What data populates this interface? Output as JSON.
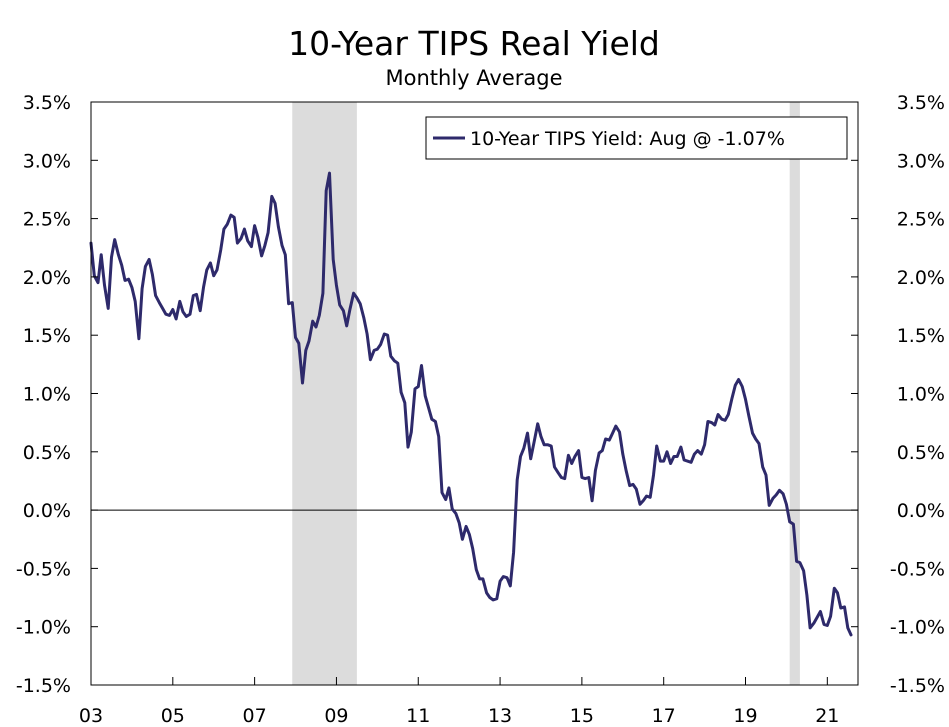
{
  "chart_data": {
    "type": "line",
    "title": "10-Year TIPS Real Yield",
    "subtitle": "Monthly Average",
    "xlabel": "",
    "ylabel": "",
    "x_range": [
      2003.0,
      2021.75
    ],
    "ylim": [
      -1.5,
      3.5
    ],
    "y_ticks": [
      3.5,
      3.0,
      2.5,
      2.0,
      1.5,
      1.0,
      0.5,
      0.0,
      -0.5,
      -1.0,
      -1.5
    ],
    "y_tick_labels": [
      "3.5%",
      "3.0%",
      "2.5%",
      "2.0%",
      "1.5%",
      "1.0%",
      "0.5%",
      "0.0%",
      "-0.5%",
      "-1.0%",
      "-1.5%"
    ],
    "x_ticks": [
      2003,
      2005,
      2007,
      2009,
      2011,
      2013,
      2015,
      2017,
      2019,
      2021
    ],
    "x_tick_labels": [
      "03",
      "05",
      "07",
      "09",
      "11",
      "13",
      "15",
      "17",
      "19",
      "21"
    ],
    "recessions": [
      [
        2007.92,
        2009.5
      ],
      [
        2020.08,
        2020.33
      ]
    ],
    "legend": "10-Year TIPS Yield: Aug @ -1.07%",
    "legend_position": "top-right",
    "series": [
      {
        "name": "10-Year TIPS Yield",
        "color": "#2e2a6b",
        "points": [
          [
            2003.0,
            2.29
          ],
          [
            2003.08,
            2.01
          ],
          [
            2003.17,
            1.95
          ],
          [
            2003.25,
            2.19
          ],
          [
            2003.33,
            1.93
          ],
          [
            2003.42,
            1.73
          ],
          [
            2003.5,
            2.17
          ],
          [
            2003.58,
            2.32
          ],
          [
            2003.67,
            2.19
          ],
          [
            2003.75,
            2.1
          ],
          [
            2003.83,
            1.97
          ],
          [
            2003.92,
            1.98
          ],
          [
            2004.0,
            1.91
          ],
          [
            2004.08,
            1.79
          ],
          [
            2004.17,
            1.47
          ],
          [
            2004.25,
            1.9
          ],
          [
            2004.33,
            2.09
          ],
          [
            2004.42,
            2.15
          ],
          [
            2004.5,
            2.02
          ],
          [
            2004.58,
            1.84
          ],
          [
            2004.67,
            1.78
          ],
          [
            2004.75,
            1.73
          ],
          [
            2004.83,
            1.68
          ],
          [
            2004.92,
            1.67
          ],
          [
            2005.0,
            1.72
          ],
          [
            2005.08,
            1.64
          ],
          [
            2005.17,
            1.79
          ],
          [
            2005.25,
            1.7
          ],
          [
            2005.33,
            1.66
          ],
          [
            2005.42,
            1.68
          ],
          [
            2005.5,
            1.84
          ],
          [
            2005.58,
            1.85
          ],
          [
            2005.67,
            1.71
          ],
          [
            2005.75,
            1.91
          ],
          [
            2005.83,
            2.06
          ],
          [
            2005.92,
            2.12
          ],
          [
            2006.0,
            2.01
          ],
          [
            2006.08,
            2.06
          ],
          [
            2006.17,
            2.23
          ],
          [
            2006.25,
            2.41
          ],
          [
            2006.33,
            2.45
          ],
          [
            2006.42,
            2.53
          ],
          [
            2006.5,
            2.51
          ],
          [
            2006.58,
            2.29
          ],
          [
            2006.67,
            2.33
          ],
          [
            2006.75,
            2.41
          ],
          [
            2006.83,
            2.31
          ],
          [
            2006.92,
            2.26
          ],
          [
            2007.0,
            2.44
          ],
          [
            2007.08,
            2.34
          ],
          [
            2007.17,
            2.18
          ],
          [
            2007.25,
            2.27
          ],
          [
            2007.33,
            2.38
          ],
          [
            2007.42,
            2.69
          ],
          [
            2007.5,
            2.63
          ],
          [
            2007.58,
            2.43
          ],
          [
            2007.67,
            2.27
          ],
          [
            2007.75,
            2.19
          ],
          [
            2007.83,
            1.77
          ],
          [
            2007.92,
            1.78
          ],
          [
            2008.0,
            1.48
          ],
          [
            2008.08,
            1.43
          ],
          [
            2008.17,
            1.09
          ],
          [
            2008.25,
            1.37
          ],
          [
            2008.33,
            1.45
          ],
          [
            2008.42,
            1.62
          ],
          [
            2008.5,
            1.57
          ],
          [
            2008.58,
            1.67
          ],
          [
            2008.67,
            1.86
          ],
          [
            2008.75,
            2.74
          ],
          [
            2008.83,
            2.89
          ],
          [
            2008.92,
            2.15
          ],
          [
            2009.0,
            1.93
          ],
          [
            2009.08,
            1.76
          ],
          [
            2009.17,
            1.71
          ],
          [
            2009.25,
            1.58
          ],
          [
            2009.33,
            1.72
          ],
          [
            2009.42,
            1.86
          ],
          [
            2009.5,
            1.82
          ],
          [
            2009.58,
            1.77
          ],
          [
            2009.67,
            1.65
          ],
          [
            2009.75,
            1.51
          ],
          [
            2009.83,
            1.29
          ],
          [
            2009.92,
            1.37
          ],
          [
            2010.0,
            1.38
          ],
          [
            2010.08,
            1.42
          ],
          [
            2010.17,
            1.51
          ],
          [
            2010.25,
            1.5
          ],
          [
            2010.33,
            1.32
          ],
          [
            2010.42,
            1.28
          ],
          [
            2010.5,
            1.26
          ],
          [
            2010.58,
            1.01
          ],
          [
            2010.67,
            0.92
          ],
          [
            2010.75,
            0.54
          ],
          [
            2010.83,
            0.67
          ],
          [
            2010.92,
            1.04
          ],
          [
            2011.0,
            1.06
          ],
          [
            2011.08,
            1.24
          ],
          [
            2011.17,
            0.98
          ],
          [
            2011.25,
            0.88
          ],
          [
            2011.33,
            0.78
          ],
          [
            2011.42,
            0.76
          ],
          [
            2011.5,
            0.63
          ],
          [
            2011.58,
            0.15
          ],
          [
            2011.67,
            0.09
          ],
          [
            2011.75,
            0.19
          ],
          [
            2011.83,
            0.01
          ],
          [
            2011.92,
            -0.03
          ],
          [
            2012.0,
            -0.11
          ],
          [
            2012.08,
            -0.25
          ],
          [
            2012.17,
            -0.14
          ],
          [
            2012.25,
            -0.21
          ],
          [
            2012.33,
            -0.33
          ],
          [
            2012.42,
            -0.51
          ],
          [
            2012.5,
            -0.59
          ],
          [
            2012.58,
            -0.59
          ],
          [
            2012.67,
            -0.71
          ],
          [
            2012.75,
            -0.75
          ],
          [
            2012.83,
            -0.77
          ],
          [
            2012.92,
            -0.76
          ],
          [
            2013.0,
            -0.61
          ],
          [
            2013.08,
            -0.57
          ],
          [
            2013.17,
            -0.58
          ],
          [
            2013.25,
            -0.65
          ],
          [
            2013.33,
            -0.36
          ],
          [
            2013.42,
            0.26
          ],
          [
            2013.5,
            0.46
          ],
          [
            2013.58,
            0.53
          ],
          [
            2013.67,
            0.66
          ],
          [
            2013.75,
            0.44
          ],
          [
            2013.83,
            0.58
          ],
          [
            2013.92,
            0.74
          ],
          [
            2014.0,
            0.63
          ],
          [
            2014.08,
            0.56
          ],
          [
            2014.17,
            0.56
          ],
          [
            2014.25,
            0.55
          ],
          [
            2014.33,
            0.37
          ],
          [
            2014.42,
            0.32
          ],
          [
            2014.5,
            0.28
          ],
          [
            2014.58,
            0.27
          ],
          [
            2014.67,
            0.47
          ],
          [
            2014.75,
            0.4
          ],
          [
            2014.83,
            0.46
          ],
          [
            2014.92,
            0.51
          ],
          [
            2015.0,
            0.28
          ],
          [
            2015.08,
            0.27
          ],
          [
            2015.17,
            0.28
          ],
          [
            2015.25,
            0.08
          ],
          [
            2015.33,
            0.34
          ],
          [
            2015.42,
            0.49
          ],
          [
            2015.5,
            0.51
          ],
          [
            2015.58,
            0.61
          ],
          [
            2015.67,
            0.6
          ],
          [
            2015.75,
            0.66
          ],
          [
            2015.83,
            0.72
          ],
          [
            2015.92,
            0.67
          ],
          [
            2016.0,
            0.48
          ],
          [
            2016.08,
            0.34
          ],
          [
            2016.17,
            0.21
          ],
          [
            2016.25,
            0.22
          ],
          [
            2016.33,
            0.18
          ],
          [
            2016.42,
            0.05
          ],
          [
            2016.5,
            0.08
          ],
          [
            2016.58,
            0.12
          ],
          [
            2016.67,
            0.11
          ],
          [
            2016.75,
            0.3
          ],
          [
            2016.83,
            0.55
          ],
          [
            2016.92,
            0.42
          ],
          [
            2017.0,
            0.42
          ],
          [
            2017.08,
            0.5
          ],
          [
            2017.17,
            0.4
          ],
          [
            2017.25,
            0.46
          ],
          [
            2017.33,
            0.46
          ],
          [
            2017.42,
            0.54
          ],
          [
            2017.5,
            0.43
          ],
          [
            2017.58,
            0.42
          ],
          [
            2017.67,
            0.41
          ],
          [
            2017.75,
            0.48
          ],
          [
            2017.83,
            0.51
          ],
          [
            2017.92,
            0.48
          ],
          [
            2018.0,
            0.56
          ],
          [
            2018.08,
            0.76
          ],
          [
            2018.17,
            0.75
          ],
          [
            2018.25,
            0.73
          ],
          [
            2018.33,
            0.82
          ],
          [
            2018.42,
            0.78
          ],
          [
            2018.5,
            0.77
          ],
          [
            2018.58,
            0.82
          ],
          [
            2018.67,
            0.96
          ],
          [
            2018.75,
            1.07
          ],
          [
            2018.83,
            1.12
          ],
          [
            2018.92,
            1.06
          ],
          [
            2019.0,
            0.95
          ],
          [
            2019.08,
            0.81
          ],
          [
            2019.17,
            0.66
          ],
          [
            2019.25,
            0.61
          ],
          [
            2019.33,
            0.57
          ],
          [
            2019.42,
            0.37
          ],
          [
            2019.5,
            0.3
          ],
          [
            2019.58,
            0.04
          ],
          [
            2019.67,
            0.1
          ],
          [
            2019.75,
            0.13
          ],
          [
            2019.83,
            0.17
          ],
          [
            2019.92,
            0.14
          ],
          [
            2020.0,
            0.05
          ],
          [
            2020.08,
            -0.1
          ],
          [
            2020.17,
            -0.12
          ],
          [
            2020.25,
            -0.44
          ],
          [
            2020.33,
            -0.45
          ],
          [
            2020.42,
            -0.52
          ],
          [
            2020.5,
            -0.73
          ],
          [
            2020.58,
            -1.01
          ],
          [
            2020.67,
            -0.97
          ],
          [
            2020.75,
            -0.92
          ],
          [
            2020.83,
            -0.87
          ],
          [
            2020.92,
            -0.98
          ],
          [
            2021.0,
            -0.99
          ],
          [
            2021.08,
            -0.91
          ],
          [
            2021.17,
            -0.67
          ],
          [
            2021.25,
            -0.71
          ],
          [
            2021.33,
            -0.84
          ],
          [
            2021.42,
            -0.83
          ],
          [
            2021.5,
            -1.01
          ],
          [
            2021.58,
            -1.07
          ]
        ]
      }
    ]
  }
}
